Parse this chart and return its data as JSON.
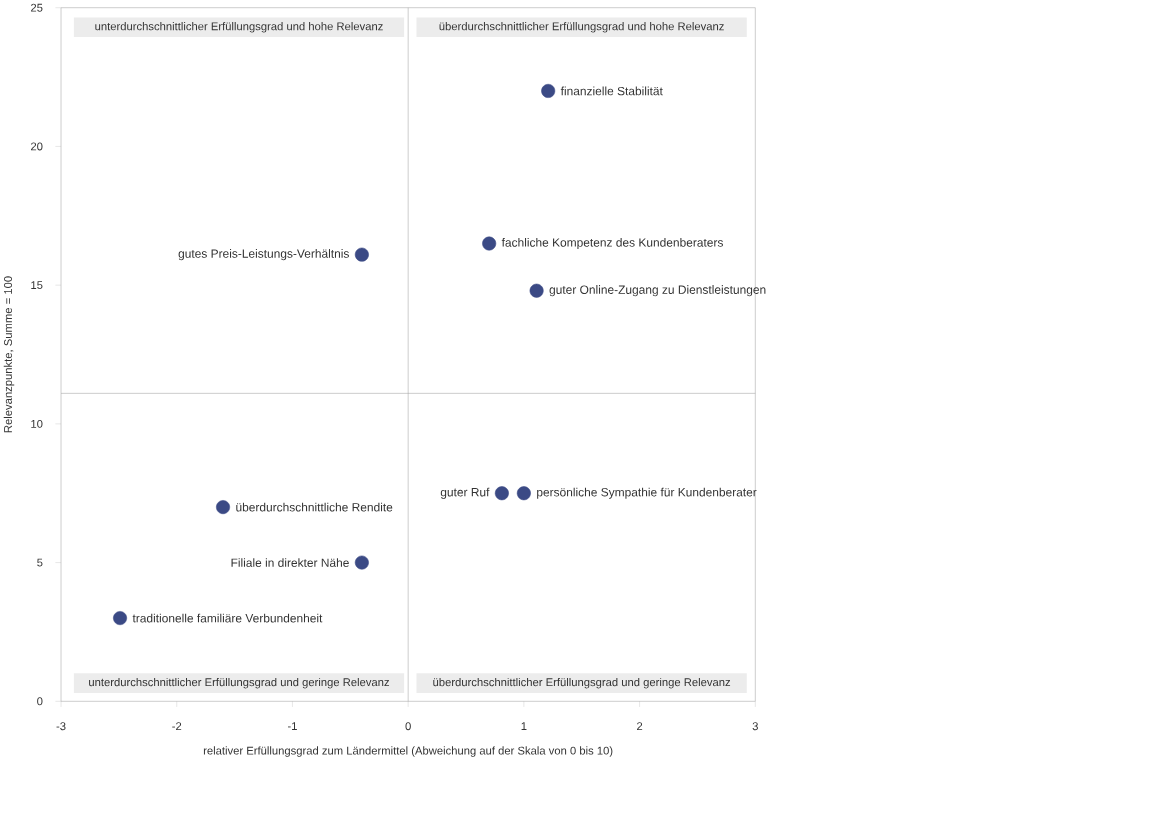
{
  "chart_data": {
    "type": "scatter",
    "xlabel": "relativer Erfüllungsgrad zum Ländermittel (Abweichung auf der Skala von 0 bis 10)",
    "ylabel": "Relevanzpunkte, Summe = 100",
    "x": [
      1.21,
      0.7,
      1.11,
      -0.4,
      0.81,
      1.0,
      -1.6,
      -0.4,
      -2.49
    ],
    "values": [
      22.0,
      16.5,
      14.8,
      16.1,
      7.5,
      7.5,
      7.0,
      5.0,
      3.0
    ],
    "value_labels": [
      "finanzielle Stabilität",
      "fachliche Kompetenz des Kundenberaters",
      "guter Online-Zugang zu Dienstleistungen",
      "gutes Preis-Leistungs-Verhältnis",
      "guter Ruf",
      "persönliche Sympathie für Kundenberater",
      "überdurchschnittliche Rendite",
      "Filiale in direkter Nähe",
      "traditionelle familiäre Verbundenheit"
    ],
    "color": "#3b4a85",
    "marker": "circle",
    "xlim": [
      -3,
      3
    ],
    "xticks": [
      -3,
      -2,
      -1,
      0,
      1,
      2,
      3
    ],
    "ylim": [
      0,
      25
    ],
    "yticks": [
      0,
      5,
      10,
      15,
      20,
      25
    ],
    "grid": false,
    "ref_lines": [
      {
        "axis": "x",
        "value": 0,
        "color": "#a6a6a6"
      },
      {
        "axis": "y",
        "value": 11.1,
        "color": "#a6a6a6"
      }
    ],
    "annotations": [
      "unterdurchschnittlicher Erfüllungsgrad und hohe Relevanz",
      "überdurchschnittlicher Erfüllungsgrad und hohe Relevanz",
      "unterdurchschnittlicher Erfüllungsgrad und geringe Relevanz",
      "überdurchschnittlicher Erfüllungsgrad und geringe Relevanz"
    ]
  }
}
